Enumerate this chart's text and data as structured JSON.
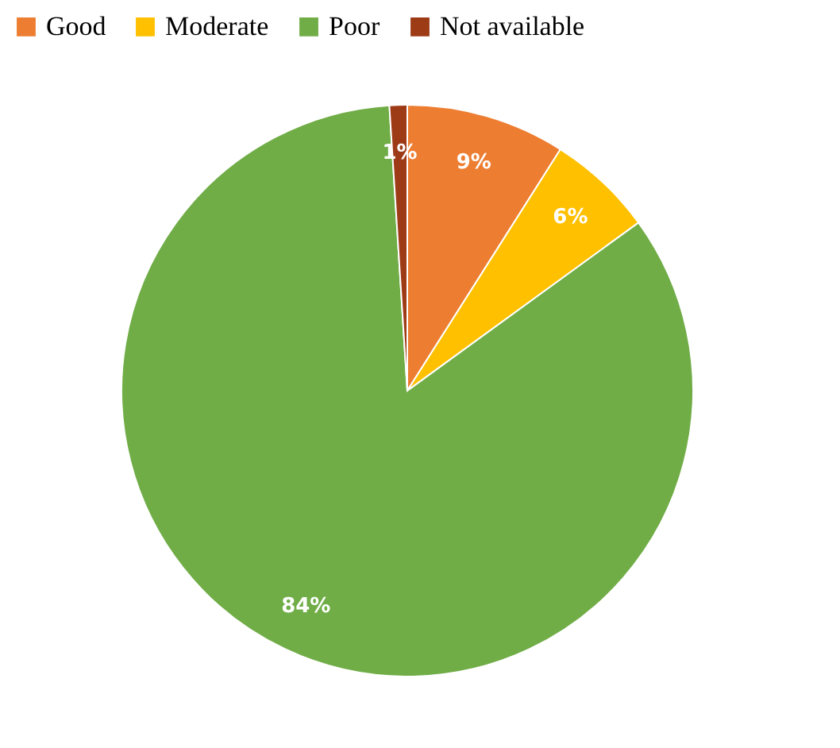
{
  "chart_data": {
    "type": "pie",
    "categories": [
      "Good",
      "Moderate",
      "Poor",
      "Not available"
    ],
    "values": [
      9,
      6,
      84,
      1
    ],
    "colors": [
      "#ed7d31",
      "#ffc000",
      "#70ad47",
      "#9e3b17"
    ],
    "value_labels": [
      "9%",
      "6%",
      "84%",
      "1%"
    ],
    "legend": "top"
  }
}
